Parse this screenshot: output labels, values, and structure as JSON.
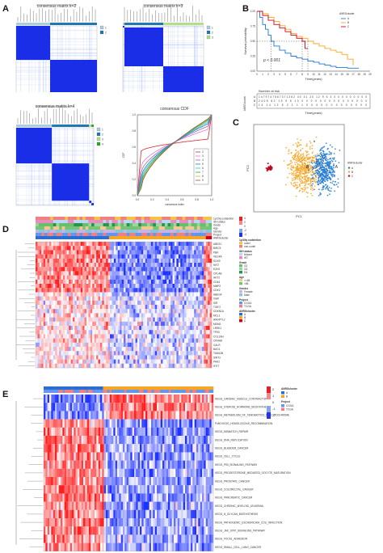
{
  "panels": {
    "A": {
      "label": "A"
    },
    "B": {
      "label": "B"
    },
    "C": {
      "label": "C"
    },
    "D": {
      "label": "D"
    },
    "E": {
      "label": "E"
    }
  },
  "panel_a": {
    "matrix_titles": [
      "consensus matrix k=2",
      "consensus matrix k=3",
      "consensus matrix k=4"
    ],
    "cdf_title": "consensus CDF",
    "cdf_xlabel": "consensus index",
    "cdf_ylabel": "CDF",
    "cdf_xticks": [
      "0.0",
      "0.2",
      "0.4",
      "0.6",
      "0.8",
      "1.0"
    ],
    "cdf_yticks": [
      "0.0",
      "0.2",
      "0.4",
      "0.6",
      "0.8",
      "1.0"
    ],
    "cdf_legend": [
      "2",
      "3",
      "4",
      "5",
      "6",
      "7",
      "8",
      "9"
    ],
    "cdf_colors": [
      "#d62728",
      "#e377c2",
      "#9467bd",
      "#1f77b4",
      "#17becf",
      "#2ca02c",
      "#bcbd22",
      "#8c564b"
    ],
    "k2_legend": [
      "1",
      "2"
    ],
    "k3_legend": [
      "1",
      "2",
      "3"
    ],
    "k4_legend": [
      "1",
      "2",
      "3",
      "4"
    ]
  },
  "panel_b": {
    "legend_title": "ANRGcluster",
    "legend_items": [
      "A",
      "B",
      "C"
    ],
    "colors": {
      "A": "#1f78d1",
      "B": "#f5a623",
      "C": "#d0021b"
    },
    "ylabel": "Survival probability",
    "xlabel": "Time(years)",
    "pvalue": "p < 0.001",
    "xticks": [
      "0",
      "1",
      "2",
      "3",
      "4",
      "5",
      "6",
      "7",
      "8",
      "9",
      "10",
      "11",
      "12",
      "13",
      "14",
      "15",
      "16",
      "17",
      "18",
      "19",
      "20"
    ],
    "yticks": [
      "0.00",
      "0.25",
      "0.50",
      "0.75",
      "1.00"
    ],
    "risk_title": "Number at risk",
    "risk_ylabel": "ANRGcluster",
    "risk_rows": [
      {
        "name": "A",
        "values": "1479747567371262 40 31 20 12 9 5 3 0 0 0 0 0 0 0 0 0"
      },
      {
        "name": "B",
        "values": "2405 62 19 9 5 10 0 0 0 0 0 0 0 0 0 0 0 0 0 0 0"
      },
      {
        "name": "C",
        "values": "14 14 12 5 2 1 1 1 0 0 0 0 0 0 0 0 0 0 0 0 0"
      }
    ],
    "risk_xlabel": "Time(years)"
  },
  "panel_c": {
    "xlabel": "PC1",
    "ylabel": "PC2",
    "legend_title": "ANRGcluster",
    "legend_items": [
      "A",
      "B",
      "C"
    ],
    "cluster_labels": [
      "A",
      "B",
      "C"
    ]
  },
  "panel_d": {
    "annotation_rows": [
      "1p/19q codeletion",
      "IDH status",
      "Grade",
      "Age",
      "Gender",
      "Project",
      "ANRGcluster"
    ],
    "genes": [
      "UBE2C",
      "BIRC5",
      "PBK",
      "VEGFA",
      "SOX9",
      "HIF2",
      "EZH2",
      "CPLAB",
      "AKT2",
      "CD44",
      "MMP2",
      "CDK2",
      "HBEGF",
      "XIAP",
      "ISR",
      "TGIF2",
      "CDKN1A",
      "MCL1",
      "ANGPTL2",
      "MDM2",
      "LRRK1",
      "TP53",
      "COL1AH",
      "CRHA8",
      "CALR",
      "BAG1",
      "TADA2B",
      "SIRT2",
      "PAK2",
      "IFIT7"
    ],
    "legend": {
      "scale": [
        "4",
        "2",
        "0",
        "-2",
        "-4"
      ],
      "codeletion_title": "1p/19q codeletion",
      "codeletion_items": [
        "codel",
        "non-codel"
      ],
      "idh_title": "IDH status",
      "idh_items": [
        "Mutant",
        "WT"
      ],
      "grade_title": "Grade",
      "grade_items": [
        "G2",
        "G3",
        "G4"
      ],
      "age_title": "Age",
      "age_items": [
        ">=65",
        "<65"
      ],
      "gender_title": "Gender",
      "gender_items": [
        "Female",
        "Male"
      ],
      "project_title": "Project",
      "project_items": [
        "CGGA",
        "TCGA"
      ],
      "cluster_title": "ANRGcluster",
      "cluster_items": [
        "A",
        "B",
        "C"
      ]
    }
  },
  "panel_e": {
    "annotation_rows": [
      "ANRGcluster",
      "Project"
    ],
    "pathways": [
      "KEGG_CARDIAC_MUSCLE_CONTRACTION",
      "KEGG_STEROID_HORMONE_BIOSYNTHESIS",
      "KEGG_METABOLISM_OF_XENOBIOTICS_BY_CYTOCHROME",
      "P450 KEGG_HOMOLOGOUS_RECOMBINATION",
      "KEGG_MISMATCH_REPAIR",
      "KEGG_DNA_REPLICATION",
      "KEGG_BLADDER_CANCER",
      "KEGG_CELL_CYCLE",
      "KEGG_P53_SIGNALING_PATHWAY",
      "KEGG_PROGESTERONE_MEDIATED_OOCYTE_MATURATION",
      "KEGG_PROSTATE_CANCER",
      "KEGG_COLORECTAL_CANCER",
      "KEGG_PANCREATIC_CANCER",
      "KEGG_CHRONIC_MYELOID_LEUKEMIA",
      "KEGG_N_GLYCAN_BIOSYNTHESIS",
      "KEGG_PATHOGENIC_ESCHERICHIA_COLI_INFECTION",
      "KEGG_JAK_STAT_SIGNALING_PATHWAY",
      "KEGG_FOCAL_ADHESION",
      "KEGG_SMALL_CELL_LUNG_CANCER"
    ],
    "legend": {
      "cluster_title": "ANRGcluster",
      "cluster_items": [
        "A",
        "B"
      ],
      "project_title": "Project",
      "project_items": [
        "CGGA",
        "TCGA"
      ],
      "scale": [
        "2",
        "1",
        "0",
        "-1",
        "-2"
      ]
    }
  }
}
